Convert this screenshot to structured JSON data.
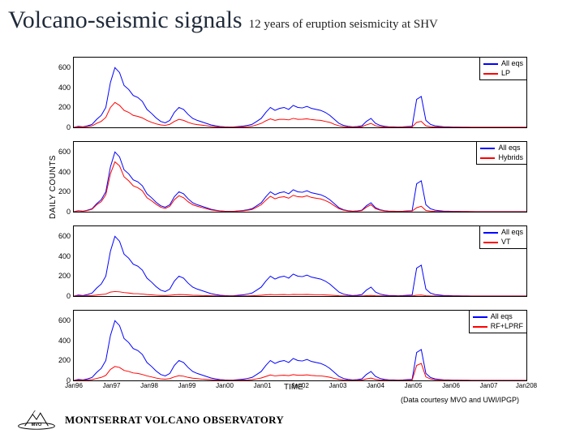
{
  "header": {
    "title": "Volcano-seismic signals",
    "subtitle": "12 years of eruption seismicity at SHV"
  },
  "global": {
    "ylabel": "DAILY COUNTS",
    "xlabel": "TIME",
    "xticks": [
      "Jan96",
      "Jan97",
      "Jan98",
      "Jan99",
      "Jan00",
      "Jan01",
      "Jan02",
      "Jan03",
      "Jan04",
      "Jan05",
      "Jan06",
      "Jan07",
      "Jan208"
    ],
    "ytick_values": [
      0,
      200,
      400,
      600
    ],
    "ymax": 700,
    "colors": {
      "primary": "#0000ff",
      "secondary": "#ff0000",
      "axis": "#000000",
      "background": "#ffffff"
    },
    "line_width": 1
  },
  "panels": [
    {
      "legend": [
        {
          "label": "All eqs",
          "color": "#0000ff"
        },
        {
          "label": "LP",
          "color": "#ff0000"
        }
      ],
      "series": {
        "primary": [
          0,
          10,
          5,
          15,
          30,
          80,
          120,
          200,
          450,
          600,
          550,
          420,
          380,
          320,
          300,
          260,
          180,
          140,
          95,
          60,
          45,
          70,
          150,
          200,
          180,
          130,
          90,
          70,
          55,
          40,
          25,
          15,
          8,
          5,
          3,
          4,
          8,
          12,
          20,
          30,
          60,
          90,
          150,
          200,
          170,
          190,
          200,
          180,
          220,
          200,
          195,
          210,
          190,
          180,
          170,
          150,
          120,
          80,
          40,
          20,
          10,
          5,
          8,
          15,
          60,
          90,
          40,
          20,
          10,
          5,
          5,
          3,
          5,
          8,
          10,
          280,
          310,
          70,
          30,
          15,
          10,
          5,
          5,
          3,
          3,
          2,
          2,
          1,
          1,
          1,
          1,
          1,
          1,
          1,
          1,
          1,
          1,
          1,
          1,
          1
        ],
        "secondary": [
          0,
          5,
          3,
          8,
          15,
          40,
          60,
          100,
          200,
          250,
          220,
          170,
          150,
          120,
          110,
          95,
          70,
          50,
          35,
          25,
          20,
          30,
          60,
          80,
          70,
          50,
          35,
          28,
          22,
          16,
          10,
          6,
          3,
          2,
          1,
          2,
          3,
          5,
          8,
          12,
          25,
          40,
          65,
          85,
          70,
          80,
          80,
          75,
          90,
          80,
          81,
          85,
          78,
          73,
          70,
          60,
          50,
          30,
          16,
          8,
          4,
          2,
          3,
          6,
          25,
          40,
          16,
          8,
          4,
          2,
          2,
          1,
          2,
          3,
          4,
          50,
          60,
          15,
          7,
          4,
          3,
          1,
          1,
          1,
          1,
          1,
          1,
          1,
          1,
          1,
          1,
          1,
          1,
          1,
          1,
          1,
          1,
          1,
          1,
          1
        ]
      }
    },
    {
      "legend": [
        {
          "label": "All eqs",
          "color": "#0000ff"
        },
        {
          "label": "Hybrids",
          "color": "#ff0000"
        }
      ],
      "series": {
        "primary": [
          0,
          10,
          5,
          15,
          30,
          80,
          120,
          200,
          450,
          600,
          550,
          420,
          380,
          320,
          300,
          260,
          180,
          140,
          95,
          60,
          45,
          70,
          150,
          200,
          180,
          130,
          90,
          70,
          55,
          40,
          25,
          15,
          8,
          5,
          3,
          4,
          8,
          12,
          20,
          30,
          60,
          90,
          150,
          200,
          170,
          190,
          200,
          180,
          220,
          200,
          195,
          210,
          190,
          180,
          170,
          150,
          120,
          80,
          40,
          20,
          10,
          5,
          8,
          15,
          60,
          90,
          40,
          20,
          10,
          5,
          5,
          3,
          5,
          8,
          10,
          280,
          310,
          70,
          30,
          15,
          10,
          5,
          5,
          3,
          3,
          2,
          2,
          1,
          1,
          1,
          1,
          1,
          1,
          1,
          1,
          1,
          1,
          1,
          1,
          1
        ],
        "secondary": [
          0,
          8,
          4,
          12,
          25,
          70,
          100,
          170,
          380,
          500,
          460,
          350,
          310,
          260,
          240,
          210,
          140,
          110,
          75,
          45,
          33,
          55,
          120,
          160,
          140,
          100,
          70,
          55,
          42,
          30,
          18,
          11,
          6,
          3,
          2,
          3,
          6,
          8,
          14,
          22,
          45,
          70,
          115,
          155,
          130,
          145,
          150,
          135,
          165,
          150,
          148,
          160,
          143,
          135,
          128,
          112,
          90,
          60,
          30,
          15,
          7,
          3,
          5,
          11,
          45,
          70,
          30,
          15,
          7,
          3,
          3,
          2,
          3,
          5,
          7,
          40,
          55,
          12,
          6,
          3,
          2,
          1,
          1,
          1,
          1,
          1,
          1,
          1,
          0,
          0,
          0,
          0,
          0,
          0,
          0,
          0,
          0,
          0,
          0,
          0
        ]
      }
    },
    {
      "legend": [
        {
          "label": "All eqs",
          "color": "#0000ff"
        },
        {
          "label": "VT",
          "color": "#ff0000"
        }
      ],
      "series": {
        "primary": [
          0,
          10,
          5,
          15,
          30,
          80,
          120,
          200,
          450,
          600,
          550,
          420,
          380,
          320,
          300,
          260,
          180,
          140,
          95,
          60,
          45,
          70,
          150,
          200,
          180,
          130,
          90,
          70,
          55,
          40,
          25,
          15,
          8,
          5,
          3,
          4,
          8,
          12,
          20,
          30,
          60,
          90,
          150,
          200,
          170,
          190,
          200,
          180,
          220,
          200,
          195,
          210,
          190,
          180,
          170,
          150,
          120,
          80,
          40,
          20,
          10,
          5,
          8,
          15,
          60,
          90,
          40,
          20,
          10,
          5,
          5,
          3,
          5,
          8,
          10,
          280,
          310,
          70,
          30,
          15,
          10,
          5,
          5,
          3,
          3,
          2,
          2,
          1,
          1,
          1,
          1,
          1,
          1,
          1,
          1,
          1,
          1,
          1,
          1,
          1
        ],
        "secondary": [
          0,
          2,
          1,
          3,
          5,
          10,
          15,
          20,
          40,
          45,
          42,
          35,
          30,
          25,
          24,
          20,
          15,
          12,
          9,
          6,
          5,
          8,
          12,
          15,
          14,
          11,
          8,
          7,
          5,
          4,
          3,
          2,
          1,
          1,
          0,
          1,
          1,
          1,
          2,
          3,
          5,
          8,
          12,
          15,
          13,
          14,
          15,
          13,
          16,
          15,
          15,
          16,
          14,
          13,
          13,
          11,
          9,
          6,
          3,
          2,
          1,
          0,
          1,
          1,
          4,
          6,
          3,
          2,
          1,
          0,
          0,
          0,
          0,
          1,
          1,
          8,
          10,
          3,
          1,
          1,
          0,
          0,
          0,
          0,
          0,
          0,
          0,
          0,
          0,
          0,
          0,
          0,
          0,
          0,
          0,
          0,
          0,
          0,
          0,
          0
        ]
      }
    },
    {
      "legend": [
        {
          "label": "All eqs",
          "color": "#0000ff"
        },
        {
          "label": "RF+LPRF",
          "color": "#ff0000"
        }
      ],
      "series": {
        "primary": [
          0,
          10,
          5,
          15,
          30,
          80,
          120,
          200,
          450,
          600,
          550,
          420,
          380,
          320,
          300,
          260,
          180,
          140,
          95,
          60,
          45,
          70,
          150,
          200,
          180,
          130,
          90,
          70,
          55,
          40,
          25,
          15,
          8,
          5,
          3,
          4,
          8,
          12,
          20,
          30,
          60,
          90,
          150,
          200,
          170,
          190,
          200,
          180,
          220,
          200,
          195,
          210,
          190,
          180,
          170,
          150,
          120,
          80,
          40,
          20,
          10,
          5,
          8,
          15,
          60,
          90,
          40,
          20,
          10,
          5,
          5,
          3,
          5,
          8,
          10,
          280,
          310,
          70,
          30,
          15,
          10,
          5,
          5,
          3,
          3,
          2,
          2,
          1,
          1,
          1,
          1,
          1,
          1,
          1,
          1,
          1,
          1,
          1,
          1,
          1
        ],
        "secondary": [
          0,
          3,
          2,
          5,
          8,
          20,
          30,
          50,
          110,
          140,
          130,
          100,
          90,
          75,
          70,
          60,
          45,
          35,
          24,
          15,
          12,
          18,
          35,
          48,
          42,
          30,
          22,
          18,
          13,
          10,
          7,
          4,
          2,
          1,
          1,
          1,
          2,
          3,
          5,
          8,
          16,
          25,
          40,
          55,
          45,
          50,
          52,
          48,
          58,
          52,
          52,
          56,
          50,
          47,
          45,
          40,
          32,
          20,
          10,
          5,
          2,
          1,
          2,
          4,
          15,
          23,
          10,
          5,
          3,
          1,
          1,
          1,
          1,
          2,
          3,
          150,
          170,
          35,
          15,
          7,
          5,
          2,
          2,
          1,
          1,
          1,
          1,
          0,
          0,
          0,
          0,
          0,
          0,
          0,
          0,
          0,
          0,
          0,
          0,
          0
        ]
      }
    }
  ],
  "credit": "(Data courtesy MVO and UWI/IPGP)",
  "footer": {
    "observatory": "MONTSERRAT VOLCANO OBSERVATORY",
    "logo_text": "MVO"
  }
}
